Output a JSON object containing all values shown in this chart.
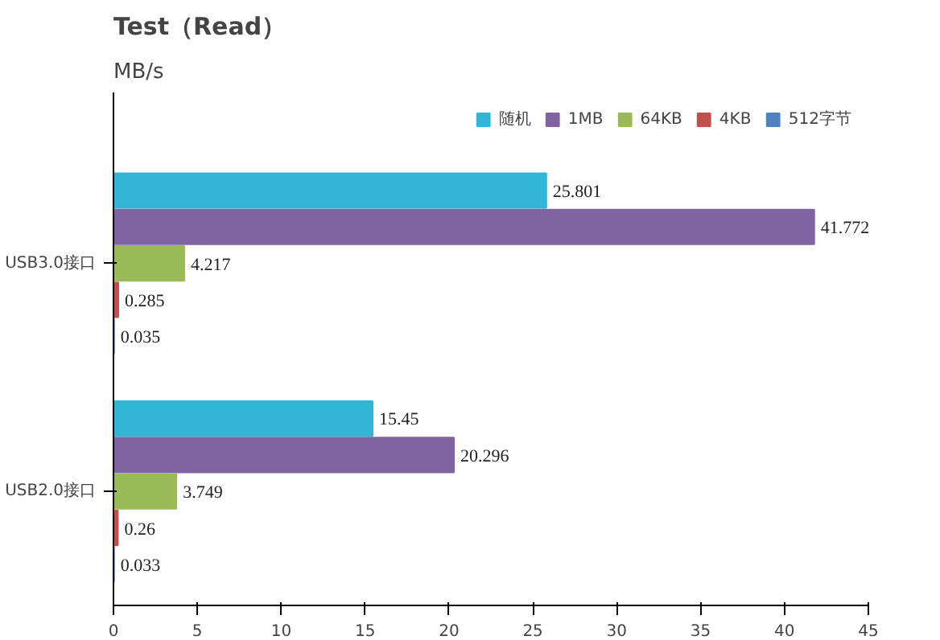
{
  "chart_data": {
    "type": "bar",
    "orientation": "horizontal",
    "title": "Test（Read）",
    "subtitle": "MB/s",
    "categories": [
      "USB3.0接口",
      "USB2.0接口"
    ],
    "series": [
      {
        "name": "随机",
        "color": "#31b6d6",
        "values": [
          25.801,
          15.45
        ]
      },
      {
        "name": "1MB",
        "color": "#8064a2",
        "values": [
          41.772,
          20.296
        ]
      },
      {
        "name": "64KB",
        "color": "#9bbb59",
        "values": [
          4.217,
          3.749
        ]
      },
      {
        "name": "4KB",
        "color": "#c0504d",
        "values": [
          0.285,
          0.26
        ]
      },
      {
        "name": "512字节",
        "color": "#4f81bd",
        "values": [
          0.035,
          0.033
        ]
      }
    ],
    "xlim": [
      0,
      45
    ],
    "xticks": [
      0,
      5,
      10,
      15,
      20,
      25,
      30,
      35,
      40,
      45
    ],
    "data_labels": true,
    "grid": false,
    "legend": "top right"
  }
}
